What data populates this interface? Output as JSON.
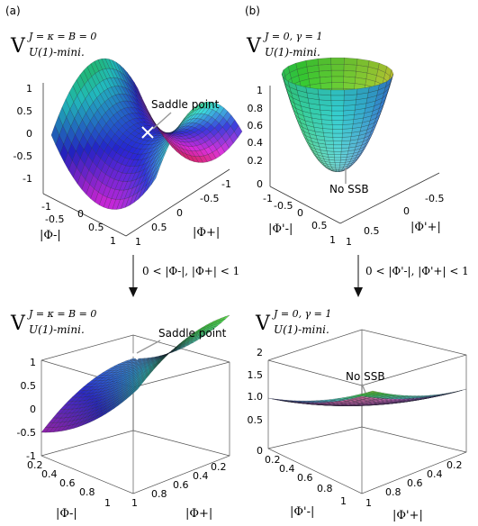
{
  "panels": [
    {
      "letter": "(a)",
      "v_symbol": "V",
      "superscript": "J = κ = B = 0",
      "subscript": "U(1)-mini.",
      "z_ticks": [
        "1",
        "0.5",
        "0",
        "-0.5",
        "-1"
      ],
      "left_ticks": [
        "-1",
        "-0.5",
        "0",
        "0.5",
        "1"
      ],
      "right_ticks": [
        "-1",
        "-0.5",
        "0",
        "0.5",
        "1"
      ],
      "left_axis_label": "|Φ-|",
      "right_axis_label": "|Φ+|",
      "annotation": "Saddle point"
    },
    {
      "letter": "(b)",
      "v_symbol": "V",
      "superscript": "J = 0, γ = 1",
      "subscript": "U(1)-mini.",
      "z_ticks": [
        "1",
        "0.8",
        "0.6",
        "0.4",
        "0.2",
        "0"
      ],
      "left_ticks": [
        "-1",
        "-0.5",
        "0",
        "0.5",
        "1"
      ],
      "right_ticks": [
        "-0.5",
        "0",
        "0.5",
        "1"
      ],
      "left_axis_label": "|Φ'-|",
      "right_axis_label": "|Φ'+|",
      "annotation": "No SSB"
    },
    {
      "v_symbol": "V",
      "superscript": "J = κ = B = 0",
      "subscript": "U(1)-mini.",
      "z_ticks": [
        "1",
        "0.5",
        "0",
        "-0.5",
        "-1"
      ],
      "left_ticks": [
        "0.2",
        "0.4",
        "0.6",
        "0.8",
        "1"
      ],
      "right_ticks": [
        "0.2",
        "0.4",
        "0.6",
        "0.8",
        "1"
      ],
      "left_axis_label": "|Φ-|",
      "right_axis_label": "|Φ+|",
      "annotation": "Saddle point"
    },
    {
      "v_symbol": "V",
      "superscript": "J = 0, γ = 1",
      "subscript": "U(1)-mini.",
      "z_ticks": [
        "2",
        "1.5",
        "1.0",
        "0.5",
        "0"
      ],
      "left_ticks": [
        "0.2",
        "0.4",
        "0.6",
        "0.8",
        "1"
      ],
      "right_ticks": [
        "0.2",
        "0.4",
        "0.6",
        "0.8",
        "1"
      ],
      "left_axis_label": "|Φ'-|",
      "right_axis_label": "|Φ'+|",
      "annotation": "No SSB"
    }
  ],
  "arrows": [
    {
      "label": "0 < |Φ-|, |Φ+| < 1"
    },
    {
      "label": "0 < |Φ'-|, |Φ'+| < 1"
    }
  ]
}
